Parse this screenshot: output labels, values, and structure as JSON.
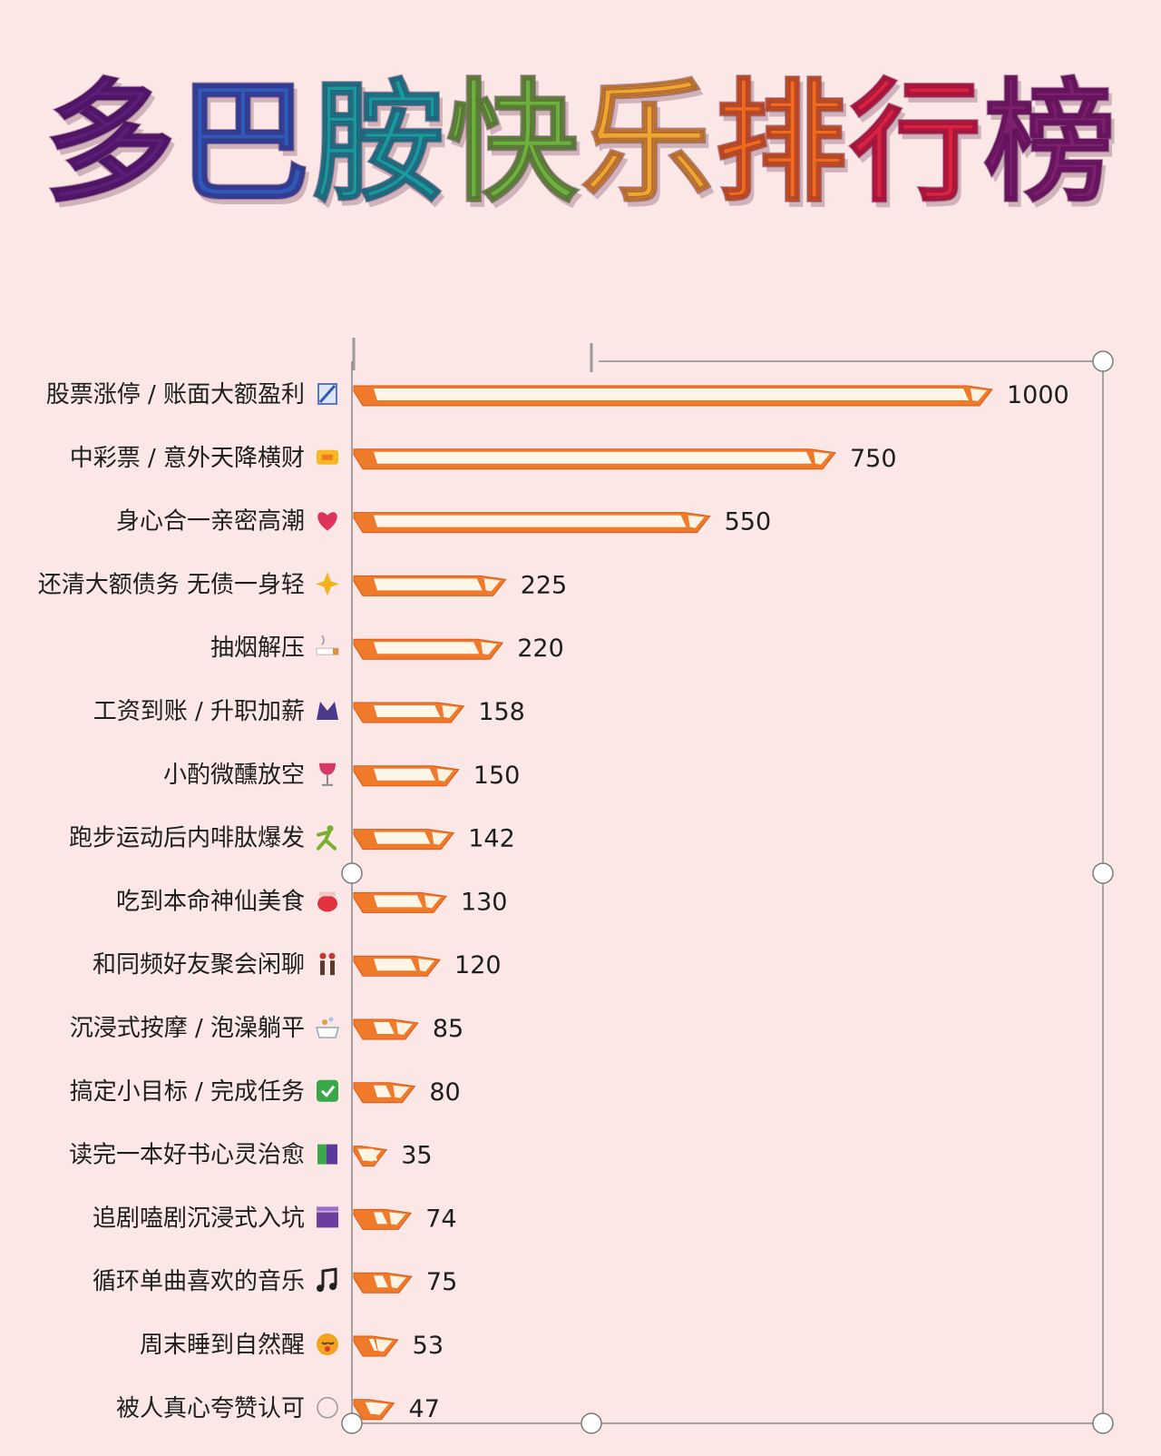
{
  "title": {
    "text": "多巴胺快乐排行榜",
    "chars": [
      "多",
      "巴",
      "胺",
      "快",
      "乐",
      "排",
      "行",
      "榜"
    ],
    "colors": [
      "#5b1f7a",
      "#2f58b8",
      "#169a9e",
      "#6bb23a",
      "#f0a52e",
      "#f06a1e",
      "#d9223f",
      "#7b1f6e"
    ]
  },
  "chart_data": {
    "type": "bar",
    "orientation": "horizontal",
    "title": "多巴胺快乐排行榜",
    "xlabel": "",
    "ylabel": "",
    "xlim": [
      0,
      1000
    ],
    "grid": false,
    "bar_color": "#ef7a2a",
    "bar_highlight": "#fff6ea",
    "items": [
      {
        "label": "股票涨停 / 账面大额盈利",
        "value": 1000,
        "icon": "chart-icon"
      },
      {
        "label": "中彩票 / 意外天降横财",
        "value": 750,
        "icon": "ticket-icon"
      },
      {
        "label": "身心合一亲密高潮",
        "value": 550,
        "icon": "heart-icon"
      },
      {
        "label": "还清大额债务 无债一身轻",
        "value": 225,
        "icon": "sparkle-icon"
      },
      {
        "label": "抽烟解压",
        "value": 220,
        "icon": "cigarette-icon"
      },
      {
        "label": "工资到账 / 升职加薪",
        "value": 158,
        "icon": "money-icon"
      },
      {
        "label": "小酌微醺放空",
        "value": 150,
        "icon": "wine-glass-icon"
      },
      {
        "label": "跑步运动后内啡肽爆发",
        "value": 142,
        "icon": "runner-icon"
      },
      {
        "label": "吃到本命神仙美食",
        "value": 130,
        "icon": "food-icon"
      },
      {
        "label": "和同频好友聚会闲聊",
        "value": 120,
        "icon": "friends-icon"
      },
      {
        "label": "沉浸式按摩 / 泡澡躺平",
        "value": 85,
        "icon": "bathtub-icon"
      },
      {
        "label": "搞定小目标 / 完成任务",
        "value": 80,
        "icon": "check-icon"
      },
      {
        "label": "读完一本好书心灵治愈",
        "value": 35,
        "icon": "book-icon"
      },
      {
        "label": "追剧嗑剧沉浸式入坑",
        "value": 74,
        "icon": "clapper-icon"
      },
      {
        "label": "循环单曲喜欢的音乐",
        "value": 75,
        "icon": "music-note-icon"
      },
      {
        "label": "周末睡到自然醒",
        "value": 53,
        "icon": "sleep-face-icon"
      },
      {
        "label": "被人真心夸赞认可",
        "value": 47,
        "icon": "circle-icon"
      }
    ]
  }
}
